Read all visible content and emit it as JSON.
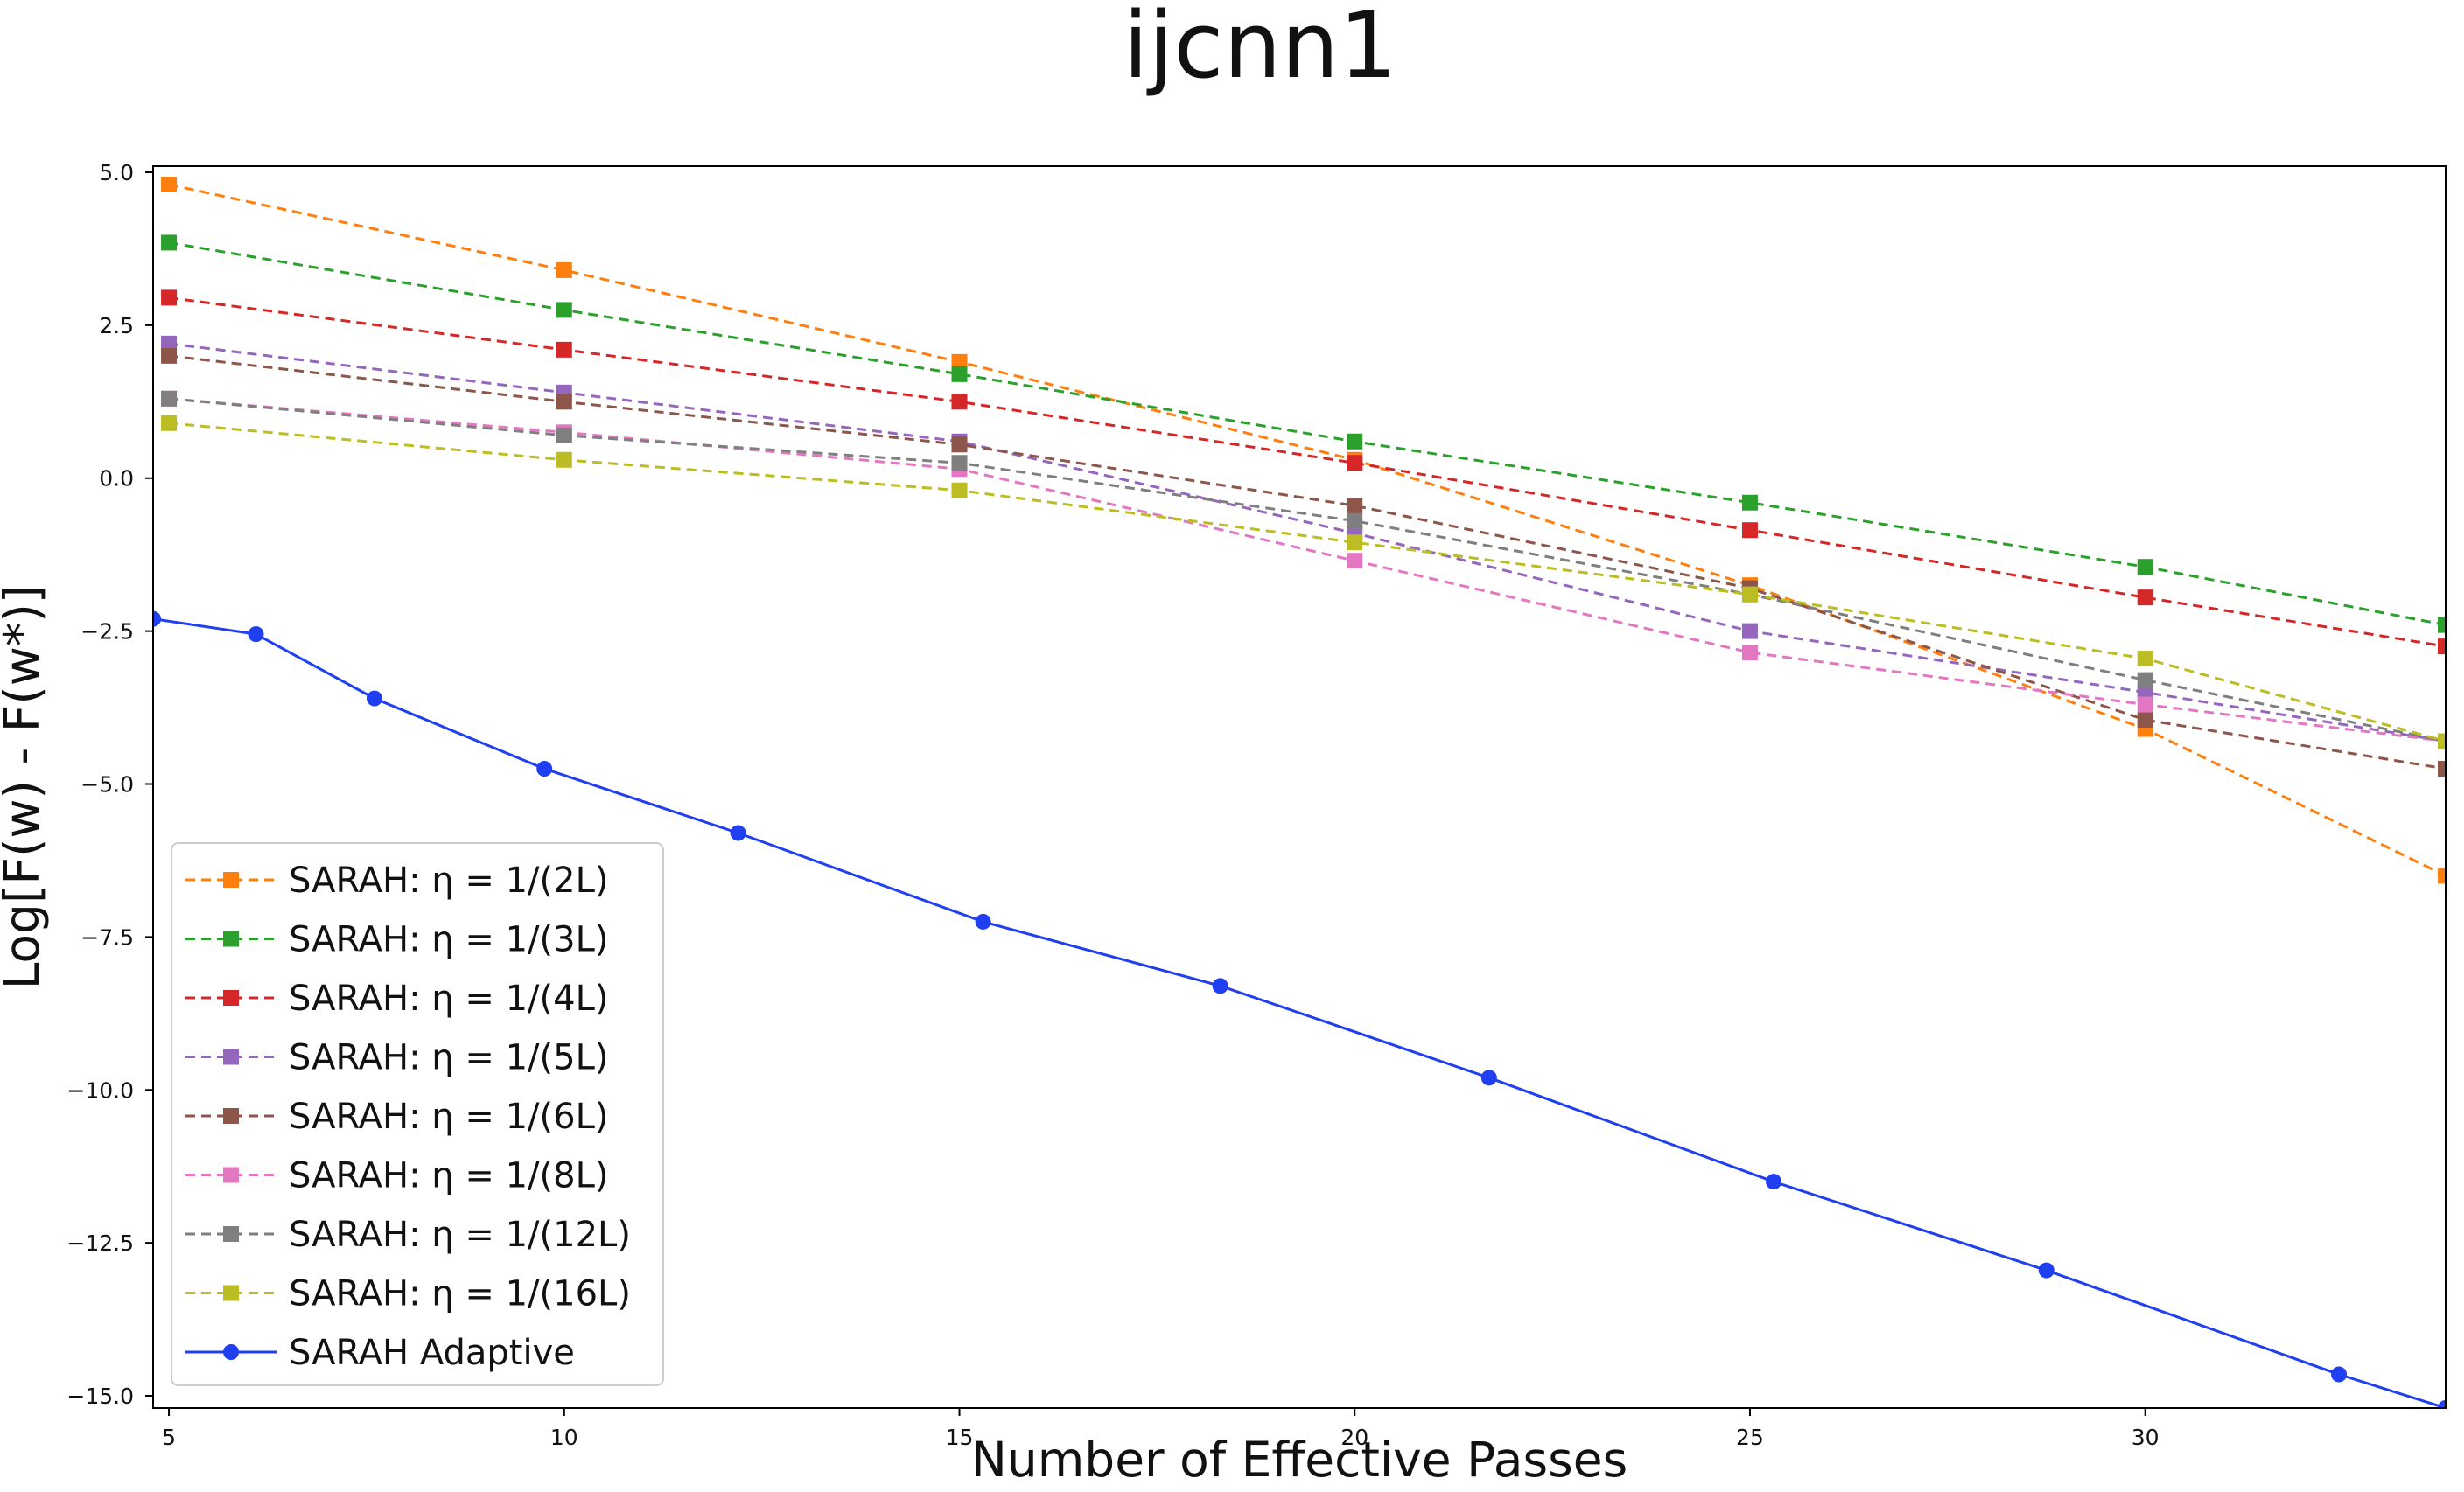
{
  "chart_data": {
    "type": "line",
    "title": "ijcnn1",
    "xlabel": "Number of Effective Passes",
    "ylabel": "Log[F(w) - F(w*)]",
    "xlim": [
      4.8,
      33.8
    ],
    "ylim": [
      -15.2,
      5.1
    ],
    "xticks": [
      5,
      10,
      15,
      20,
      25,
      30
    ],
    "yticks": [
      5.0,
      2.5,
      0.0,
      -2.5,
      -5.0,
      -7.5,
      -10.0,
      -12.5,
      -15.0
    ],
    "xtick_labels": [
      "5",
      "10",
      "15",
      "20",
      "25",
      "30"
    ],
    "ytick_labels": [
      "5.0",
      "2.5",
      "0.0",
      "−2.5",
      "−5.0",
      "−7.5",
      "−10.0",
      "−12.5",
      "−15.0"
    ],
    "legend_position": "lower-left",
    "series": [
      {
        "name": "SARAH: η = 1/(2L)",
        "color": "#ff7f0e",
        "style": "dashed",
        "marker": "square",
        "x": [
          5,
          10,
          15,
          20,
          25,
          30,
          33.8
        ],
        "y": [
          4.8,
          3.4,
          1.9,
          0.3,
          -1.75,
          -4.1,
          -6.5
        ]
      },
      {
        "name": "SARAH: η = 1/(3L)",
        "color": "#2ca02c",
        "style": "dashed",
        "marker": "square",
        "x": [
          5,
          10,
          15,
          20,
          25,
          30,
          33.8
        ],
        "y": [
          3.85,
          2.75,
          1.7,
          0.6,
          -0.4,
          -1.45,
          -2.4
        ]
      },
      {
        "name": "SARAH: η = 1/(4L)",
        "color": "#d62728",
        "style": "dashed",
        "marker": "square",
        "x": [
          5,
          10,
          15,
          20,
          25,
          30,
          33.8
        ],
        "y": [
          2.95,
          2.1,
          1.25,
          0.25,
          -0.85,
          -1.95,
          -2.75
        ]
      },
      {
        "name": "SARAH: η = 1/(5L)",
        "color": "#9467bd",
        "style": "dashed",
        "marker": "square",
        "x": [
          5,
          10,
          15,
          20,
          25,
          30,
          33.8
        ],
        "y": [
          2.2,
          1.4,
          0.6,
          -0.9,
          -2.5,
          -3.5,
          -4.3
        ]
      },
      {
        "name": "SARAH: η = 1/(6L)",
        "color": "#8c564b",
        "style": "dashed",
        "marker": "square",
        "x": [
          5,
          10,
          15,
          20,
          25,
          30,
          33.8
        ],
        "y": [
          2.0,
          1.25,
          0.55,
          -0.45,
          -1.8,
          -3.95,
          -4.75
        ]
      },
      {
        "name": "SARAH: η = 1/(8L)",
        "color": "#e377c2",
        "style": "dashed",
        "marker": "square",
        "x": [
          5,
          10,
          15,
          20,
          25,
          30,
          33.8
        ],
        "y": [
          1.3,
          0.75,
          0.15,
          -1.35,
          -2.85,
          -3.7,
          -4.3
        ]
      },
      {
        "name": "SARAH: η = 1/(12L)",
        "color": "#7f7f7f",
        "style": "dashed",
        "marker": "square",
        "x": [
          5,
          10,
          15,
          20,
          25,
          30,
          33.8
        ],
        "y": [
          1.3,
          0.7,
          0.25,
          -0.7,
          -1.9,
          -3.3,
          -4.3
        ]
      },
      {
        "name": "SARAH: η = 1/(16L)",
        "color": "#bcbd22",
        "style": "dashed",
        "marker": "square",
        "x": [
          5,
          10,
          15,
          20,
          25,
          30,
          33.8
        ],
        "y": [
          0.9,
          0.3,
          -0.2,
          -1.05,
          -1.9,
          -2.95,
          -4.3
        ]
      },
      {
        "name": "SARAH Adaptive",
        "color": "#1f3ff0",
        "style": "solid",
        "marker": "circle",
        "x": [
          4.8,
          6.1,
          7.6,
          9.75,
          12.2,
          15.3,
          18.3,
          21.7,
          25.3,
          28.75,
          32.45,
          33.8
        ],
        "y": [
          -2.3,
          -2.55,
          -3.6,
          -4.75,
          -5.8,
          -7.25,
          -8.3,
          -9.8,
          -11.5,
          -12.95,
          -14.65,
          -15.2
        ]
      }
    ]
  }
}
